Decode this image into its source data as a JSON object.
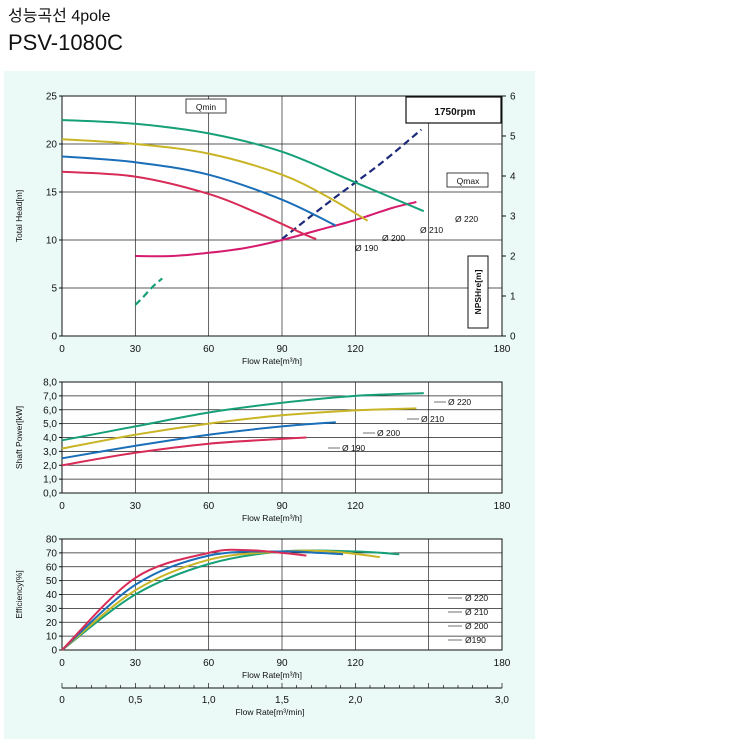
{
  "header": {
    "title_ko": "성능곡선 4pole",
    "model": "PSV-1080C"
  },
  "colors": {
    "d220": "#17a078",
    "d210": "#c8b424",
    "d200": "#1a6fb8",
    "d190": "#d82c58",
    "npsh": "#d61a6e",
    "qline_min": "#17a078",
    "qline_max": "#1d2b7a",
    "panel_bg": "#ebfaf6"
  },
  "chart_data": [
    {
      "type": "line",
      "name": "head",
      "xlabel": "Flow Rate[m³/h]",
      "ylabel": "Total Head[m]",
      "y2label": "NPSHre[m]",
      "speed_label": "1750rpm",
      "xlim": [
        0,
        180
      ],
      "ylim": [
        0,
        25
      ],
      "y2lim": [
        0,
        6
      ],
      "x_ticks": [
        "0",
        "30",
        "60",
        "90",
        "120",
        "180"
      ],
      "y_ticks": [
        "0",
        "5",
        "10",
        "15",
        "20",
        "25"
      ],
      "y2_ticks": [
        "0",
        "1",
        "2",
        "3",
        "4",
        "5",
        "6"
      ],
      "series": [
        {
          "name": "Ø 220",
          "key": "d220",
          "x": [
            0,
            30,
            60,
            90,
            120,
            148
          ],
          "y": [
            22.5,
            22.1,
            21.1,
            19.2,
            16.0,
            13.0
          ]
        },
        {
          "name": "Ø 210",
          "key": "d210",
          "x": [
            0,
            30,
            60,
            90,
            110,
            125
          ],
          "y": [
            20.5,
            20.0,
            19.0,
            16.8,
            14.3,
            12.0
          ]
        },
        {
          "name": "Ø 200",
          "key": "d200",
          "x": [
            0,
            30,
            60,
            90,
            112
          ],
          "y": [
            18.7,
            18.1,
            16.8,
            14.2,
            11.5
          ]
        },
        {
          "name": "Ø 190",
          "key": "d190",
          "x": [
            0,
            30,
            60,
            80,
            100,
            104
          ],
          "y": [
            17.1,
            16.6,
            14.8,
            12.8,
            10.5,
            10.1
          ]
        }
      ],
      "npsh": {
        "x": [
          30,
          45,
          60,
          75,
          90,
          105,
          120,
          135,
          145
        ],
        "y": [
          2.0,
          2.0,
          2.08,
          2.2,
          2.4,
          2.65,
          2.9,
          3.2,
          3.35
        ]
      },
      "qmin": {
        "label": "Qmin",
        "x": [
          30,
          33,
          37,
          41
        ],
        "y": [
          3.25,
          4.0,
          5.1,
          6.0
        ]
      },
      "qmax": {
        "label": "Qmax",
        "x": [
          90,
          110,
          130,
          147
        ],
        "y": [
          10.1,
          14.1,
          17.9,
          21.5
        ]
      }
    },
    {
      "type": "line",
      "name": "power",
      "xlabel": "Flow Rate[m³/h]",
      "ylabel": "Shaft Power[kW]",
      "xlim": [
        0,
        180
      ],
      "ylim": [
        0,
        8
      ],
      "x_ticks": [
        "0",
        "30",
        "60",
        "90",
        "120",
        "180"
      ],
      "y_ticks": [
        "0,0",
        "1,0",
        "2,0",
        "3,0",
        "4,0",
        "5,0",
        "6,0",
        "7,0",
        "8,0"
      ],
      "series": [
        {
          "name": "Ø 220",
          "key": "d220",
          "x": [
            0,
            30,
            60,
            90,
            120,
            148
          ],
          "y": [
            3.8,
            4.8,
            5.8,
            6.5,
            7.0,
            7.2
          ]
        },
        {
          "name": "Ø 210",
          "key": "d210",
          "x": [
            0,
            30,
            60,
            90,
            120,
            145
          ],
          "y": [
            3.2,
            4.2,
            5.0,
            5.6,
            5.95,
            6.1
          ]
        },
        {
          "name": "Ø 200",
          "key": "d200",
          "x": [
            0,
            30,
            60,
            90,
            112
          ],
          "y": [
            2.5,
            3.4,
            4.2,
            4.8,
            5.1
          ]
        },
        {
          "name": "Ø 190",
          "key": "d190",
          "x": [
            0,
            30,
            60,
            90,
            100
          ],
          "y": [
            2.0,
            2.9,
            3.55,
            3.9,
            4.0
          ]
        }
      ]
    },
    {
      "type": "line",
      "name": "efficiency",
      "xlabel": "Flow Rate[m³/h]",
      "x2label": "Flow Rate[m³/min]",
      "ylabel": "Efficiency[%]",
      "xlim": [
        0,
        180
      ],
      "ylim": [
        0,
        80
      ],
      "x2lim": [
        0,
        3.0
      ],
      "x_ticks": [
        "0",
        "30",
        "60",
        "90",
        "120",
        "180"
      ],
      "x2_ticks": [
        "0",
        "0,5",
        "1,0",
        "1,5",
        "2,0",
        "3,0"
      ],
      "y_ticks": [
        "0",
        "10",
        "20",
        "30",
        "40",
        "50",
        "60",
        "70",
        "80"
      ],
      "legend": [
        "Ø 220",
        "Ø 210",
        "Ø 200",
        "Ø190"
      ],
      "series": [
        {
          "name": "Ø 220",
          "key": "d220",
          "x": [
            0,
            30,
            60,
            90,
            120,
            138
          ],
          "y": [
            0,
            40,
            62,
            71,
            71,
            69
          ]
        },
        {
          "name": "Ø 210",
          "key": "d210",
          "x": [
            0,
            30,
            60,
            90,
            110,
            130
          ],
          "y": [
            0,
            43,
            65,
            71,
            71,
            67
          ]
        },
        {
          "name": "Ø 200",
          "key": "d200",
          "x": [
            0,
            30,
            60,
            90,
            105,
            115
          ],
          "y": [
            0,
            47,
            68,
            71,
            70,
            69
          ]
        },
        {
          "name": "Ø 190",
          "key": "d190",
          "x": [
            0,
            30,
            60,
            75,
            90,
            100
          ],
          "y": [
            0,
            52,
            70,
            72,
            70,
            68
          ]
        }
      ]
    }
  ]
}
